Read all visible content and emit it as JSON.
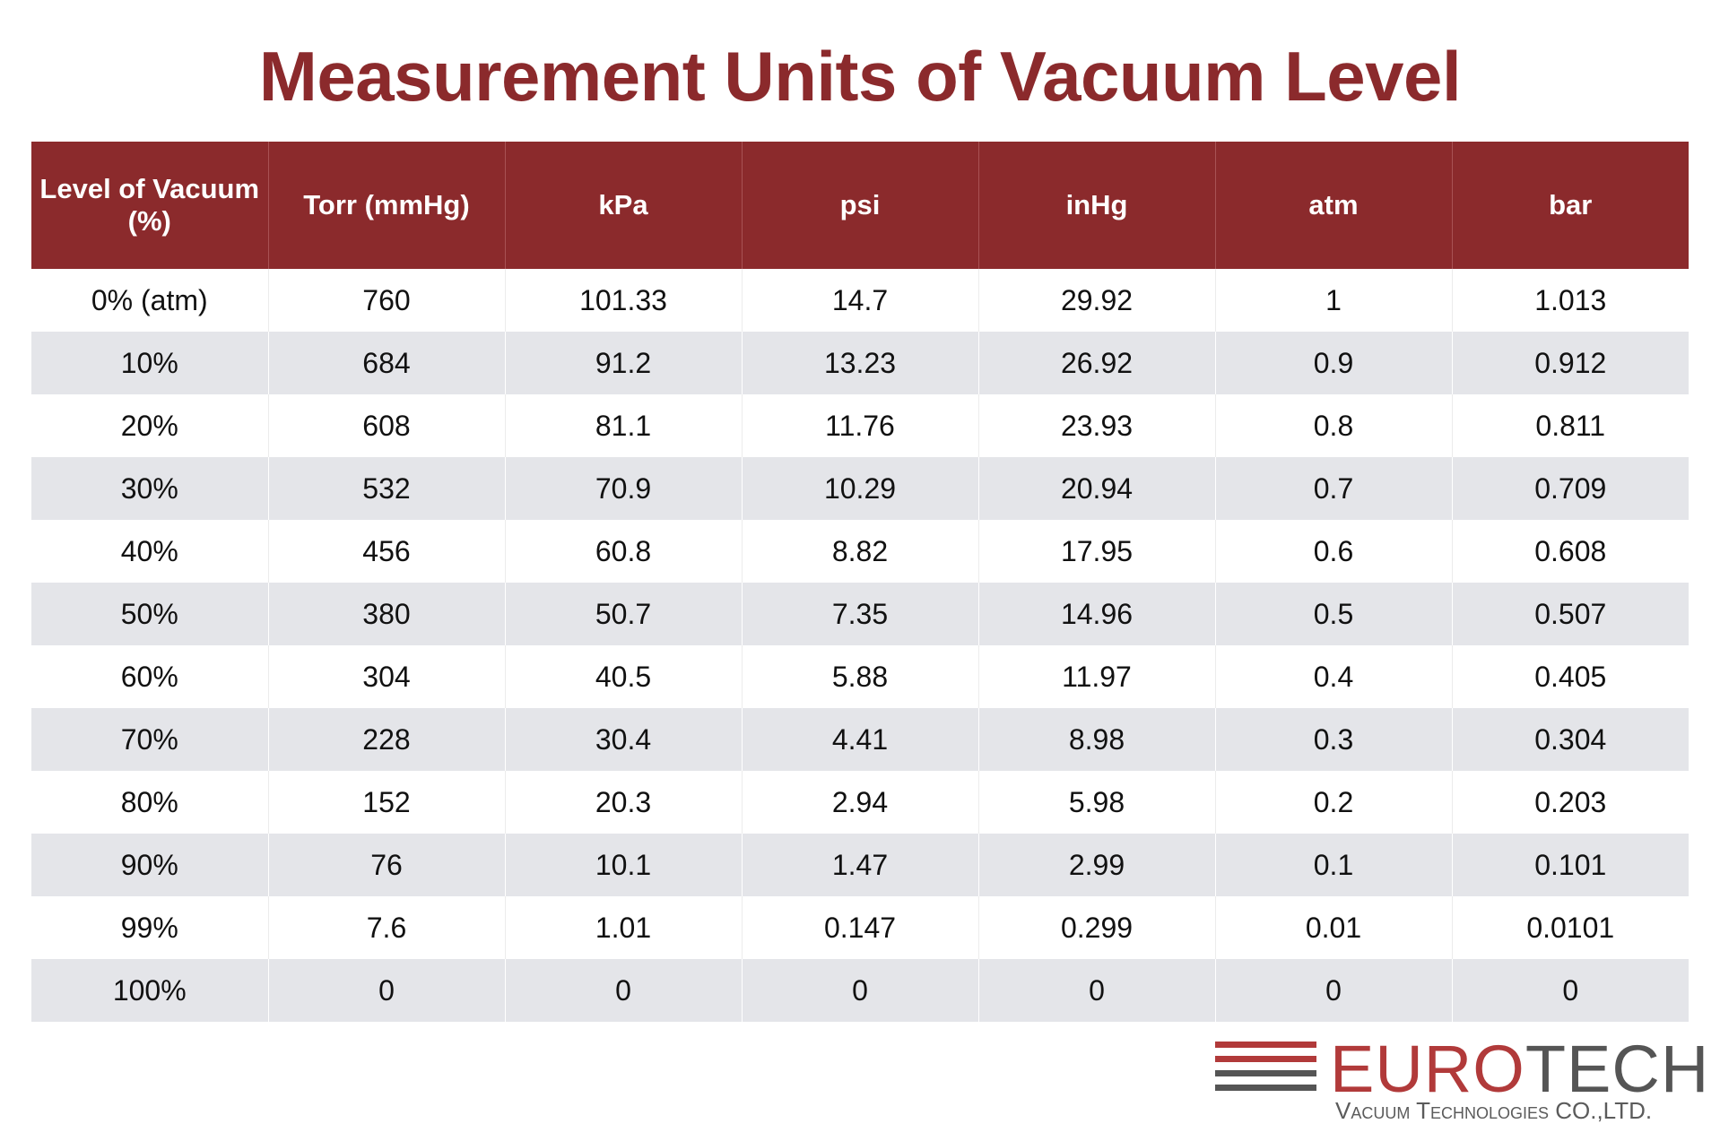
{
  "header": {
    "title": "Measurement Units of Vacuum Level"
  },
  "table": {
    "columns": [
      "Level of Vacuum (%)",
      "Torr (mmHg)",
      "kPa",
      "psi",
      "inHg",
      "atm",
      "bar"
    ],
    "rows": [
      [
        "0% (atm)",
        "760",
        "101.33",
        "14.7",
        "29.92",
        "1",
        "1.013"
      ],
      [
        "10%",
        "684",
        "91.2",
        "13.23",
        "26.92",
        "0.9",
        "0.912"
      ],
      [
        "20%",
        "608",
        "81.1",
        "11.76",
        "23.93",
        "0.8",
        "0.811"
      ],
      [
        "30%",
        "532",
        "70.9",
        "10.29",
        "20.94",
        "0.7",
        "0.709"
      ],
      [
        "40%",
        "456",
        "60.8",
        "8.82",
        "17.95",
        "0.6",
        "0.608"
      ],
      [
        "50%",
        "380",
        "50.7",
        "7.35",
        "14.96",
        "0.5",
        "0.507"
      ],
      [
        "60%",
        "304",
        "40.5",
        "5.88",
        "11.97",
        "0.4",
        "0.405"
      ],
      [
        "70%",
        "228",
        "30.4",
        "4.41",
        "8.98",
        "0.3",
        "0.304"
      ],
      [
        "80%",
        "152",
        "20.3",
        "2.94",
        "5.98",
        "0.2",
        "0.203"
      ],
      [
        "90%",
        "76",
        "10.1",
        "1.47",
        "2.99",
        "0.1",
        "0.101"
      ],
      [
        "99%",
        "7.6",
        "1.01",
        "0.147",
        "0.299",
        "0.01",
        "0.0101"
      ],
      [
        "100%",
        "0",
        "0",
        "0",
        "0",
        "0",
        "0"
      ]
    ]
  },
  "logo": {
    "name_parts": [
      "EURO",
      "TECH"
    ],
    "tagline": "Vacuum Technologies CO.,LTD."
  }
}
